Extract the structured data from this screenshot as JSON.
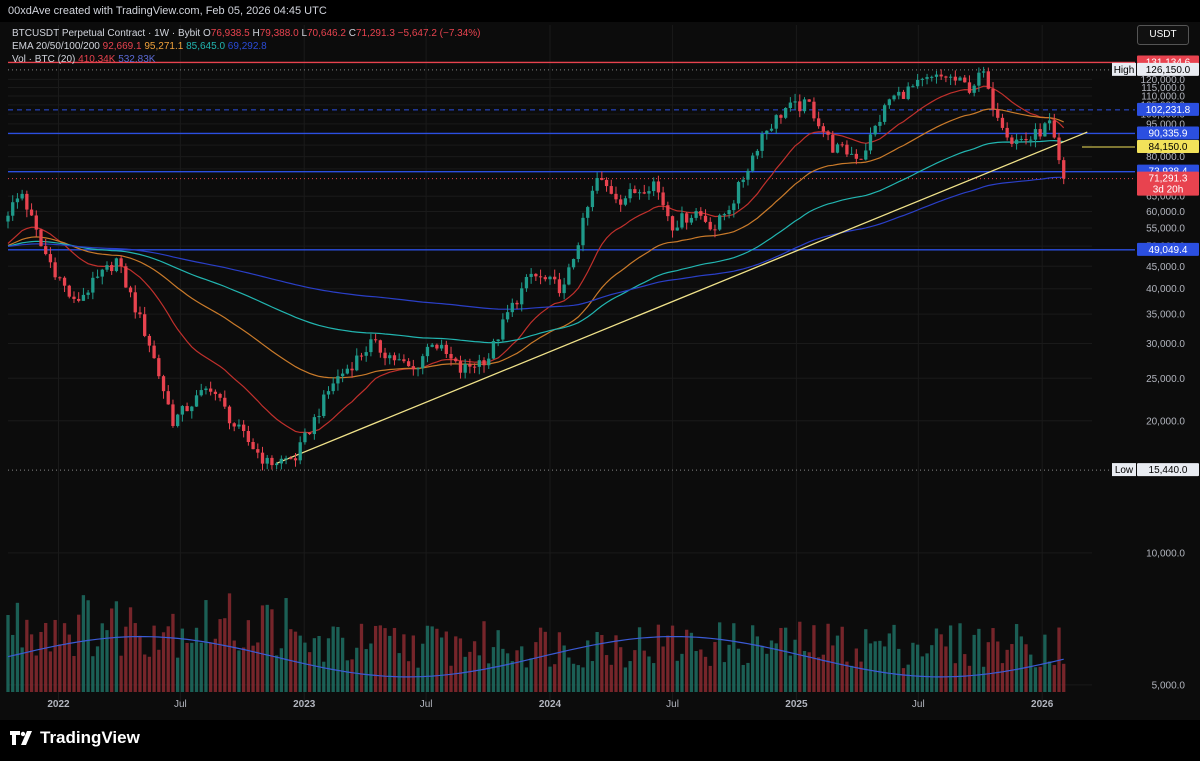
{
  "header": {
    "credit": "00xdAve created with TradingView.com, Feb 05, 2026 04:45 UTC"
  },
  "legend": {
    "symbol": "BTCUSDT Perpetual Contract · 1W · Bybit",
    "open_label": "O",
    "open": "76,938.5",
    "high_label": "H",
    "high": "79,388.0",
    "low_label": "L",
    "low": "70,646.2",
    "close_label": "C",
    "close": "71,291.3",
    "change": "−5,647.2 (−7.34%)",
    "ema_label": "EMA 20/50/100/200",
    "ema20": "92,669.1",
    "ema50": "95,271.1",
    "ema100": "85,645.0",
    "ema200": "69,292.8",
    "vol_label": "Vol · BTC (20)",
    "vol": "410.34K",
    "vol_ma": "532.83K"
  },
  "currency": "USDT",
  "brand": "TradingView",
  "colors": {
    "up": "#1f9a8a",
    "down": "#e8434f",
    "ema20": "#c0302c",
    "ema50": "#c97a2a",
    "ema100": "#22b5b0",
    "ema200": "#2a3fc7",
    "trend": "#f0e28a",
    "level": "#2b4fe0",
    "volma": "#3b5bd6"
  },
  "chart_data": {
    "type": "candlestick",
    "timeframe": "1W",
    "y_scale": "log",
    "ylim": [
      4500,
      140000
    ],
    "x_range": [
      "2021-10-18",
      "2026-03-16"
    ],
    "y_ticks": [
      {
        "v": 120000,
        "t": "120,000.0"
      },
      {
        "v": 115000,
        "t": "115,000.0"
      },
      {
        "v": 110000,
        "t": "110,000.0"
      },
      {
        "v": 105000,
        "t": "105,000.0"
      },
      {
        "v": 100000,
        "t": "100,000.0"
      },
      {
        "v": 95000,
        "t": "95,000.0"
      },
      {
        "v": 85000,
        "t": "85,000.0"
      },
      {
        "v": 80000,
        "t": "80,000.0"
      },
      {
        "v": 75000,
        "t": "75,000.0"
      },
      {
        "v": 65000,
        "t": "65,000.0"
      },
      {
        "v": 60000,
        "t": "60,000.0"
      },
      {
        "v": 55000,
        "t": "55,000.0"
      },
      {
        "v": 50000,
        "t": "50,000.0"
      },
      {
        "v": 45000,
        "t": "45,000.0"
      },
      {
        "v": 40000,
        "t": "40,000.0"
      },
      {
        "v": 35000,
        "t": "35,000.0"
      },
      {
        "v": 30000,
        "t": "30,000.0"
      },
      {
        "v": 25000,
        "t": "25,000.0"
      },
      {
        "v": 20000,
        "t": "20,000.0"
      },
      {
        "v": 10000,
        "t": "10,000.0"
      },
      {
        "v": 5000,
        "t": "5,000.0"
      }
    ],
    "x_ticks": [
      {
        "d": "2022-01-01",
        "t": "2022",
        "bold": true
      },
      {
        "d": "2022-07-01",
        "t": "Jul",
        "bold": false
      },
      {
        "d": "2023-01-01",
        "t": "2023",
        "bold": true
      },
      {
        "d": "2023-07-01",
        "t": "Jul",
        "bold": false
      },
      {
        "d": "2024-01-01",
        "t": "2024",
        "bold": true
      },
      {
        "d": "2024-07-01",
        "t": "Jul",
        "bold": false
      },
      {
        "d": "2025-01-01",
        "t": "2025",
        "bold": true
      },
      {
        "d": "2025-07-01",
        "t": "Jul",
        "bold": false
      },
      {
        "d": "2026-01-01",
        "t": "2026",
        "bold": true
      }
    ],
    "price_labels": [
      {
        "value": 131134.6,
        "text": "131,134.6",
        "bg": "#e8434f",
        "fg": "#ffffff",
        "prefix": ""
      },
      {
        "value": 126150.0,
        "text": "126,150.0",
        "bg": "#e9ecf2",
        "fg": "#000000",
        "prefix": "High"
      },
      {
        "value": 102231.8,
        "text": "102,231.8",
        "bg": "#2b4fe0",
        "fg": "#ffffff",
        "prefix": ""
      },
      {
        "value": 90335.9,
        "text": "90,335.9",
        "bg": "#2b4fe0",
        "fg": "#ffffff",
        "prefix": ""
      },
      {
        "value": 84150.0,
        "text": "84,150.0",
        "bg": "#f2e25a",
        "fg": "#000000",
        "prefix": ""
      },
      {
        "value": 73938.4,
        "text": "73,938.4",
        "bg": "#2b4fe0",
        "fg": "#ffffff",
        "prefix": ""
      },
      {
        "value": 71291.3,
        "text": "71,291.3",
        "bg": "#e8434f",
        "fg": "#ffffff",
        "prefix": "",
        "sub": "3d 20h"
      },
      {
        "value": 49049.4,
        "text": "49,049.4",
        "bg": "#2b4fe0",
        "fg": "#ffffff",
        "prefix": ""
      },
      {
        "value": 15440.0,
        "text": "15,440.0",
        "bg": "#e9ecf2",
        "fg": "#000000",
        "prefix": "Low"
      }
    ],
    "levels": [
      {
        "value": 131134.6,
        "style": "solid",
        "color": "#e8434f"
      },
      {
        "value": 126150.0,
        "style": "dotted",
        "color": "#888888"
      },
      {
        "value": 102231.8,
        "style": "dashed",
        "color": "#2b4fe0"
      },
      {
        "value": 90335.9,
        "style": "solid",
        "color": "#2b4fe0"
      },
      {
        "value": 73938.4,
        "style": "solid",
        "color": "#2b4fe0"
      },
      {
        "value": 71291.3,
        "style": "dotted",
        "color": "#e8434f"
      },
      {
        "value": 49049.4,
        "style": "solid",
        "color": "#2b4fe0"
      },
      {
        "value": 15440.0,
        "style": "dotted",
        "color": "#888888"
      }
    ],
    "trendline": [
      {
        "d": "2022-11-21",
        "v": 16000
      },
      {
        "d": "2026-03-09",
        "v": 91000
      }
    ],
    "anchors": [
      [
        "2021-10-18",
        60000
      ],
      [
        "2021-11-08",
        66000
      ],
      [
        "2021-12-06",
        50000
      ],
      [
        "2022-01-24",
        37000
      ],
      [
        "2022-03-28",
        46500
      ],
      [
        "2022-05-16",
        30000
      ],
      [
        "2022-06-20",
        20000
      ],
      [
        "2022-08-15",
        24000
      ],
      [
        "2022-09-19",
        19500
      ],
      [
        "2022-11-07",
        16000
      ],
      [
        "2022-12-19",
        16500
      ],
      [
        "2023-02-13",
        24500
      ],
      [
        "2023-03-13",
        27000
      ],
      [
        "2023-04-10",
        30000
      ],
      [
        "2023-06-12",
        26000
      ],
      [
        "2023-07-10",
        30500
      ],
      [
        "2023-08-21",
        26000
      ],
      [
        "2023-10-02",
        28000
      ],
      [
        "2023-10-30",
        35000
      ],
      [
        "2023-12-04",
        43000
      ],
      [
        "2024-01-22",
        40000
      ],
      [
        "2024-02-26",
        61000
      ],
      [
        "2024-03-11",
        71000
      ],
      [
        "2024-04-15",
        64000
      ],
      [
        "2024-06-03",
        70000
      ],
      [
        "2024-07-01",
        56000
      ],
      [
        "2024-08-05",
        60000
      ],
      [
        "2024-09-02",
        55000
      ],
      [
        "2024-09-30",
        64000
      ],
      [
        "2024-11-11",
        90000
      ],
      [
        "2024-12-16",
        103000
      ],
      [
        "2025-01-20",
        105000
      ],
      [
        "2025-02-24",
        84000
      ],
      [
        "2025-04-07",
        80000
      ],
      [
        "2025-05-19",
        108000
      ],
      [
        "2025-07-14",
        119000
      ],
      [
        "2025-08-11",
        122000
      ],
      [
        "2025-09-15",
        115000
      ],
      [
        "2025-10-06",
        124000
      ],
      [
        "2025-10-13",
        111000
      ],
      [
        "2025-11-17",
        87000
      ],
      [
        "2025-12-15",
        88000
      ],
      [
        "2026-01-12",
        95000
      ],
      [
        "2026-01-26",
        77000
      ],
      [
        "2026-02-02",
        71291.3
      ]
    ],
    "volume": {
      "ylim": [
        0,
        1500000
      ],
      "series_name": "Vol · BTC (20)"
    },
    "ema_periods": [
      20,
      50,
      100,
      200
    ]
  }
}
